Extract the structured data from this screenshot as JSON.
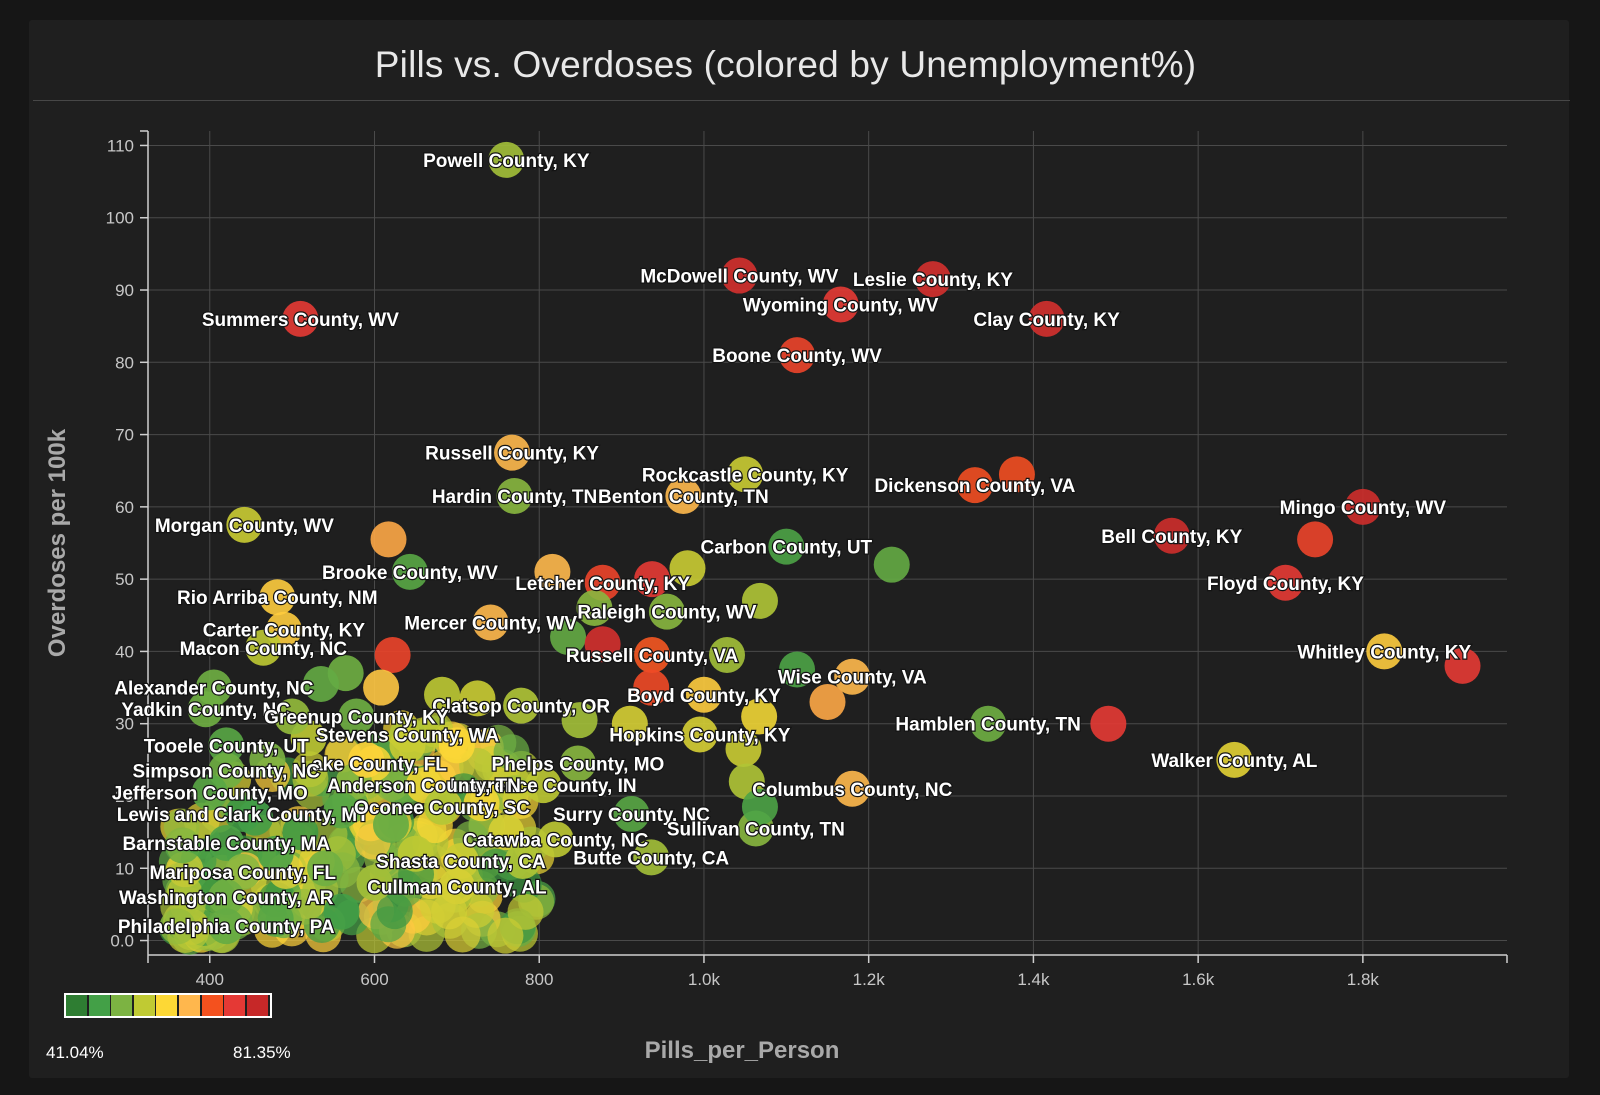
{
  "chart_data": {
    "type": "scatter",
    "title": "Pills vs. Overdoses (colored by Unemployment%)",
    "xlabel": "Pills_per_Person",
    "ylabel": "Overdoses per 100k",
    "xlim": [
      325,
      1975
    ],
    "ylim": [
      -2,
      112
    ],
    "x_ticks": [
      {
        "value": 400,
        "label": "400"
      },
      {
        "value": 600,
        "label": "600"
      },
      {
        "value": 800,
        "label": "800"
      },
      {
        "value": 1000,
        "label": "1.0k"
      },
      {
        "value": 1200,
        "label": "1.2k"
      },
      {
        "value": 1400,
        "label": "1.4k"
      },
      {
        "value": 1600,
        "label": "1.6k"
      },
      {
        "value": 1800,
        "label": "1.8k"
      }
    ],
    "y_ticks": [
      {
        "value": 0,
        "label": "0.0"
      },
      {
        "value": 10,
        "label": "10"
      },
      {
        "value": 20,
        "label": "20"
      },
      {
        "value": 30,
        "label": "30"
      },
      {
        "value": 40,
        "label": "40"
      },
      {
        "value": 50,
        "label": "50"
      },
      {
        "value": 60,
        "label": "60"
      },
      {
        "value": 70,
        "label": "70"
      },
      {
        "value": 80,
        "label": "80"
      },
      {
        "value": 90,
        "label": "90"
      },
      {
        "value": 100,
        "label": "100"
      },
      {
        "value": 110,
        "label": "110"
      }
    ],
    "grid": true,
    "color_scale": {
      "variable": "Unemployment%",
      "min_label": "41.04%",
      "max_label": "81.35%",
      "min": 41.04,
      "max": 81.35,
      "colors": [
        "#2e7d32",
        "#43a047",
        "#7cb342",
        "#c0ca33",
        "#fdd835",
        "#ffb74d",
        "#f4511e",
        "#e53935",
        "#c62828"
      ]
    },
    "legend": "bottom-left",
    "points": [
      {
        "label": "Powell County, KY",
        "x": 760,
        "y": 108,
        "u": 54
      },
      {
        "label": "McDowell County, WV",
        "x": 1043,
        "y": 92,
        "u": 79
      },
      {
        "label": "Leslie County, KY",
        "x": 1278,
        "y": 91.5,
        "u": 79
      },
      {
        "label": "Wyoming County, WV",
        "x": 1166,
        "y": 88,
        "u": 76
      },
      {
        "label": "Clay County, KY",
        "x": 1416,
        "y": 86,
        "u": 79
      },
      {
        "label": "Summers County, WV",
        "x": 510,
        "y": 86,
        "u": 76
      },
      {
        "label": "Boone County, WV",
        "x": 1113,
        "y": 81,
        "u": 74
      },
      {
        "label": "Russell County, KY",
        "x": 767,
        "y": 67.5,
        "u": 66
      },
      {
        "label": "Rockcastle County, KY",
        "x": 1050,
        "y": 64.5,
        "u": 57
      },
      {
        "label": "Dickenson County, VA",
        "x": 1329,
        "y": 63,
        "u": 72
      },
      {
        "label": "Hardin County, TN",
        "x": 770,
        "y": 61.5,
        "u": 52
      },
      {
        "label": "Benton County, TN",
        "x": 975,
        "y": 61.5,
        "u": 66
      },
      {
        "label": "Mingo County, WV",
        "x": 1800,
        "y": 60,
        "u": 80
      },
      {
        "label": "Morgan County, WV",
        "x": 442,
        "y": 57.5,
        "u": 57
      },
      {
        "label": "Bell County, KY",
        "x": 1568,
        "y": 56,
        "u": 80
      },
      {
        "label": "Carbon County, UT",
        "x": 1100,
        "y": 54.5,
        "u": 47
      },
      {
        "label": "Brooke County, WV",
        "x": 643,
        "y": 51,
        "u": 48
      },
      {
        "label": "Letcher County, KY",
        "x": 877,
        "y": 49.5,
        "u": 74
      },
      {
        "label": "Floyd County, KY",
        "x": 1706,
        "y": 49.5,
        "u": 76
      },
      {
        "label": "Rio Arriba County, NM",
        "x": 482,
        "y": 47.5,
        "u": 63
      },
      {
        "label": "Raleigh County, WV",
        "x": 955,
        "y": 45.5,
        "u": 52
      },
      {
        "label": "Mercer County, WV",
        "x": 741,
        "y": 44,
        "u": 66
      },
      {
        "label": "Carter County, KY",
        "x": 490,
        "y": 43,
        "u": 63
      },
      {
        "label": "Macon County, NC",
        "x": 465,
        "y": 40.5,
        "u": 56
      },
      {
        "label": "Whitley County, KY",
        "x": 1826,
        "y": 40,
        "u": 63
      },
      {
        "label": "Russell County, VA",
        "x": 937,
        "y": 39.5,
        "u": 71
      },
      {
        "label": "Wise County, VA",
        "x": 1180,
        "y": 36.5,
        "u": 66
      },
      {
        "label": "Alexander County, NC",
        "x": 405,
        "y": 35,
        "u": 50
      },
      {
        "label": "Boyd County, KY",
        "x": 1000,
        "y": 34,
        "u": 63
      },
      {
        "label": "Clatsop County, OR",
        "x": 778,
        "y": 32.5,
        "u": 55
      },
      {
        "label": "Yadkin County, NC",
        "x": 395,
        "y": 32,
        "u": 50
      },
      {
        "label": "Greenup County, KY",
        "x": 578,
        "y": 31,
        "u": 50
      },
      {
        "label": "Hamblen County, TN",
        "x": 1345,
        "y": 30,
        "u": 50
      },
      {
        "label": "Stevens County, WA",
        "x": 640,
        "y": 28.5,
        "u": 55
      },
      {
        "label": "Hopkins County, KY",
        "x": 995,
        "y": 28.5,
        "u": 58
      },
      {
        "label": "Tooele County, UT",
        "x": 420,
        "y": 27,
        "u": 48
      },
      {
        "label": "Lake County, FL",
        "x": 599,
        "y": 24.5,
        "u": 60
      },
      {
        "label": "Phelps County, MO",
        "x": 847,
        "y": 24.5,
        "u": 52
      },
      {
        "label": "Walker County, AL",
        "x": 1644,
        "y": 25,
        "u": 59
      },
      {
        "label": "Simpson County, NC",
        "x": 420,
        "y": 23.5,
        "u": 50
      },
      {
        "label": "Lawrence County, IN",
        "x": 805,
        "y": 21.5,
        "u": 56
      },
      {
        "label": "Anderson County, TN",
        "x": 660,
        "y": 21.5,
        "u": 60
      },
      {
        "label": "Jefferson County, MO",
        "x": 400,
        "y": 20.5,
        "u": 48
      },
      {
        "label": "Columbus County, NC",
        "x": 1180,
        "y": 21,
        "u": 66
      },
      {
        "label": "Lewis and Clark County, MT",
        "x": 440,
        "y": 17.5,
        "u": 45
      },
      {
        "label": "Oconee County, SC",
        "x": 682,
        "y": 18.5,
        "u": 55
      },
      {
        "label": "Surry County, NC",
        "x": 912,
        "y": 17.5,
        "u": 48
      },
      {
        "label": "Sullivan County, TN",
        "x": 1063,
        "y": 15.5,
        "u": 52
      },
      {
        "label": "Barnstable County, MA",
        "x": 420,
        "y": 13.5,
        "u": 47
      },
      {
        "label": "Catawba County, NC",
        "x": 820,
        "y": 14,
        "u": 56
      },
      {
        "label": "Butte County, CA",
        "x": 936,
        "y": 11.5,
        "u": 54
      },
      {
        "label": "Shasta County, CA",
        "x": 705,
        "y": 11,
        "u": 57
      },
      {
        "label": "Mariposa County, FL",
        "x": 440,
        "y": 9.5,
        "u": 52
      },
      {
        "label": "Cullman County, AL",
        "x": 700,
        "y": 7.5,
        "u": 58
      },
      {
        "label": "Washington County, AR",
        "x": 420,
        "y": 6,
        "u": 50
      },
      {
        "label": "Philadelphia County, PA",
        "x": 420,
        "y": 2,
        "u": 49
      },
      {
        "label": "",
        "x": 1742,
        "y": 55.5,
        "u": 74
      },
      {
        "label": "",
        "x": 1921,
        "y": 38,
        "u": 76
      },
      {
        "label": "",
        "x": 1491,
        "y": 30,
        "u": 76
      },
      {
        "label": "",
        "x": 1380,
        "y": 64.5,
        "u": 72
      },
      {
        "label": "",
        "x": 1228,
        "y": 52,
        "u": 49
      },
      {
        "label": "",
        "x": 1113,
        "y": 37.5,
        "u": 47
      },
      {
        "label": "",
        "x": 1150,
        "y": 33,
        "u": 67
      },
      {
        "label": "",
        "x": 1068,
        "y": 47,
        "u": 55
      },
      {
        "label": "",
        "x": 1028,
        "y": 39.5,
        "u": 54
      },
      {
        "label": "",
        "x": 1067,
        "y": 31,
        "u": 60
      },
      {
        "label": "",
        "x": 1048,
        "y": 26.5,
        "u": 57
      },
      {
        "label": "",
        "x": 1052,
        "y": 22,
        "u": 55
      },
      {
        "label": "",
        "x": 1068,
        "y": 18.5,
        "u": 47
      },
      {
        "label": "",
        "x": 980,
        "y": 51.5,
        "u": 57
      },
      {
        "label": "",
        "x": 937,
        "y": 50,
        "u": 76
      },
      {
        "label": "",
        "x": 617,
        "y": 55.5,
        "u": 67
      },
      {
        "label": "",
        "x": 816,
        "y": 51,
        "u": 66
      },
      {
        "label": "",
        "x": 867,
        "y": 46,
        "u": 52
      },
      {
        "label": "",
        "x": 835,
        "y": 42,
        "u": 49
      },
      {
        "label": "",
        "x": 877,
        "y": 41,
        "u": 79
      },
      {
        "label": "",
        "x": 622,
        "y": 39.5,
        "u": 74
      },
      {
        "label": "",
        "x": 936,
        "y": 35,
        "u": 73
      },
      {
        "label": "",
        "x": 608,
        "y": 35,
        "u": 64
      },
      {
        "label": "",
        "x": 682,
        "y": 34,
        "u": 56
      },
      {
        "label": "",
        "x": 725,
        "y": 33.5,
        "u": 57
      },
      {
        "label": "",
        "x": 849,
        "y": 30.5,
        "u": 54
      },
      {
        "label": "",
        "x": 910,
        "y": 30,
        "u": 58
      },
      {
        "label": "",
        "x": 565,
        "y": 37,
        "u": 50
      },
      {
        "label": "",
        "x": 535,
        "y": 35.5,
        "u": 49
      },
      {
        "label": "",
        "x": 520,
        "y": 28,
        "u": 56
      },
      {
        "label": "",
        "x": 575,
        "y": 22,
        "u": 52
      },
      {
        "label": "",
        "x": 560,
        "y": 18,
        "u": 48
      },
      {
        "label": "",
        "x": 510,
        "y": 15,
        "u": 45
      },
      {
        "label": "",
        "x": 480,
        "y": 12,
        "u": 47
      },
      {
        "label": "",
        "x": 540,
        "y": 10,
        "u": 50
      },
      {
        "label": "",
        "x": 600,
        "y": 8,
        "u": 54
      },
      {
        "label": "",
        "x": 650,
        "y": 12,
        "u": 56
      },
      {
        "label": "",
        "x": 760,
        "y": 15,
        "u": 58
      },
      {
        "label": "",
        "x": 780,
        "y": 11,
        "u": 55
      },
      {
        "label": "",
        "x": 730,
        "y": 19,
        "u": 60
      },
      {
        "label": "",
        "x": 620,
        "y": 16,
        "u": 49
      },
      {
        "label": "",
        "x": 590,
        "y": 25,
        "u": 62
      },
      {
        "label": "",
        "x": 455,
        "y": 17,
        "u": 46
      },
      {
        "label": "",
        "x": 470,
        "y": 25,
        "u": 51
      },
      {
        "label": "",
        "x": 500,
        "y": 31,
        "u": 53
      },
      {
        "label": "",
        "x": 640,
        "y": 27,
        "u": 57
      },
      {
        "label": "",
        "x": 700,
        "y": 27,
        "u": 61
      },
      {
        "label": "",
        "x": 560,
        "y": 4,
        "u": 46
      },
      {
        "label": "",
        "x": 480,
        "y": 3,
        "u": 48
      }
    ]
  }
}
